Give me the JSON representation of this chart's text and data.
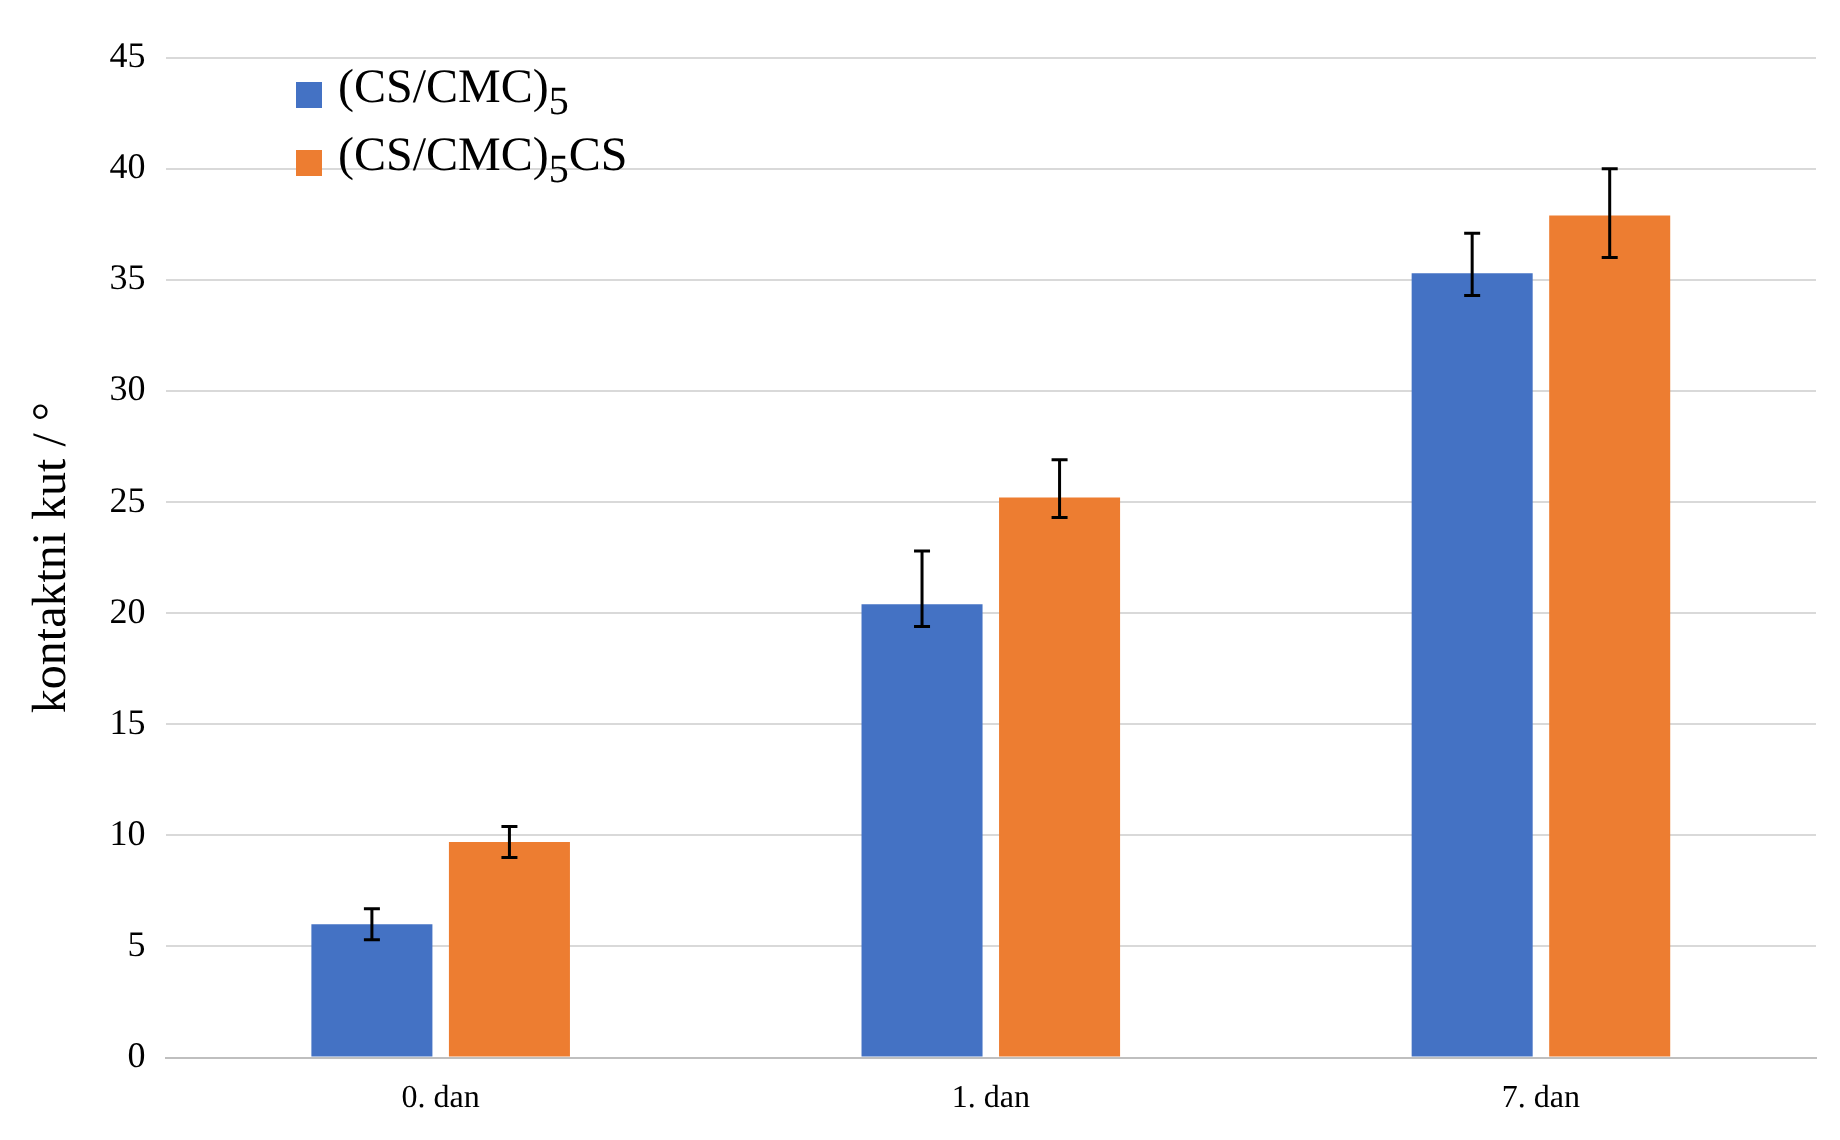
{
  "chart_data": {
    "type": "bar",
    "ylabel": "kontaktni kut / °",
    "categories": [
      "0. dan",
      "1. dan",
      "7. dan"
    ],
    "series": [
      {
        "name": "(CS/CMC)$_{5}$",
        "color": "#4472c4",
        "values": [
          6.0,
          20.4,
          35.3
        ],
        "errors": [
          0.7,
          [
            19.4,
            22.8
          ],
          [
            34.3,
            37.1
          ]
        ]
      },
      {
        "name": "(CS/CMC)$_{5}$CS",
        "color": "#ed7d31",
        "values": [
          9.7,
          25.2,
          37.9
        ],
        "errors": [
          0.7,
          [
            24.3,
            26.9
          ],
          [
            36.0,
            40.0
          ]
        ]
      }
    ],
    "ylim": [
      0,
      45
    ],
    "yticks": [
      0,
      5,
      10,
      15,
      20,
      25,
      30,
      35,
      40,
      45
    ],
    "grid": "y",
    "legend": "top left"
  }
}
